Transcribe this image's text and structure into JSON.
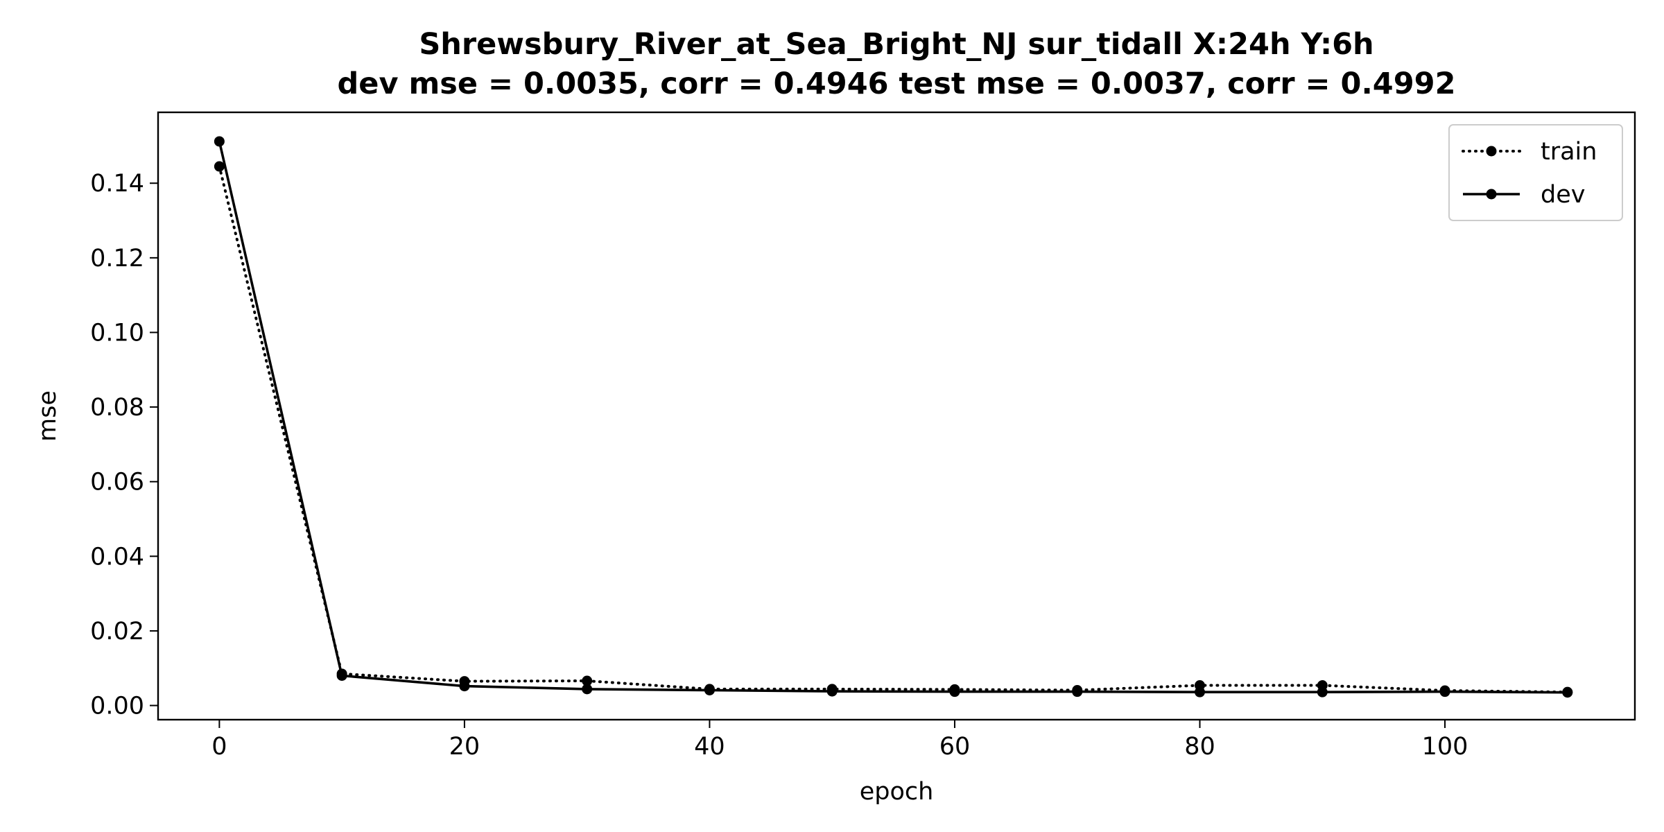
{
  "chart_data": {
    "type": "line",
    "title": "Shrewsbury_River_at_Sea_Bright_NJ   sur_tidall   X:24h   Y:6h",
    "subtitle": "dev mse = 0.0035, corr = 0.4946   test mse = 0.0037, corr = 0.4992",
    "xlabel": "epoch",
    "ylabel": "mse",
    "xlim": [
      -5,
      115.5
    ],
    "ylim": [
      -0.0038,
      0.159
    ],
    "xticks": [
      0,
      20,
      40,
      60,
      80,
      100
    ],
    "xtick_labels": [
      "0",
      "20",
      "40",
      "60",
      "80",
      "100"
    ],
    "yticks": [
      0.0,
      0.02,
      0.04,
      0.06,
      0.08,
      0.1,
      0.12,
      0.14
    ],
    "ytick_labels": [
      "0.00",
      "0.02",
      "0.04",
      "0.06",
      "0.08",
      "0.10",
      "0.12",
      "0.14"
    ],
    "grid": false,
    "legend_position": "top-right",
    "x": [
      0,
      10,
      20,
      30,
      40,
      50,
      60,
      70,
      80,
      90,
      100,
      110
    ],
    "series": [
      {
        "name": "train",
        "style": "dotted",
        "color": "#000000",
        "values": [
          0.1445,
          0.0085,
          0.0065,
          0.0066,
          0.0044,
          0.0044,
          0.0043,
          0.0041,
          0.0054,
          0.0054,
          0.004,
          0.0036
        ]
      },
      {
        "name": "dev",
        "style": "solid",
        "color": "#000000",
        "values": [
          0.1512,
          0.008,
          0.0052,
          0.0044,
          0.0041,
          0.0038,
          0.0037,
          0.0037,
          0.0036,
          0.0036,
          0.0037,
          0.0035
        ]
      }
    ]
  }
}
